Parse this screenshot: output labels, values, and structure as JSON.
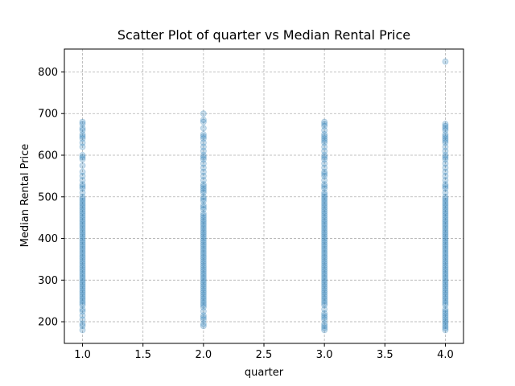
{
  "chart_data": {
    "type": "scatter",
    "title": "Scatter Plot of quarter vs Median Rental Price",
    "xlabel": "quarter",
    "ylabel": "Median Rental Price",
    "xlim": [
      0.85,
      4.15
    ],
    "ylim": [
      148,
      855
    ],
    "xticks": [
      1.0,
      1.5,
      2.0,
      2.5,
      3.0,
      3.5,
      4.0
    ],
    "xtick_labels": [
      "1.0",
      "1.5",
      "2.0",
      "2.5",
      "3.0",
      "3.5",
      "4.0"
    ],
    "yticks": [
      200,
      300,
      400,
      500,
      600,
      700,
      800
    ],
    "ytick_labels": [
      "200",
      "300",
      "400",
      "500",
      "600",
      "700",
      "800"
    ],
    "grid": true,
    "marker_color": "#1f77b4",
    "marker_alpha": 0.25,
    "series": [
      {
        "x": [
          1,
          1,
          1,
          1,
          1,
          1,
          1,
          1,
          1,
          1,
          1,
          1,
          1,
          1,
          1,
          1,
          1,
          1,
          1,
          1,
          1,
          1,
          1,
          1,
          1,
          1,
          1,
          1,
          1,
          1,
          1,
          1,
          1,
          1,
          1,
          1,
          1,
          1,
          1,
          1,
          1,
          1,
          1,
          1,
          1,
          1,
          1,
          1,
          1,
          1,
          1,
          1,
          1,
          1,
          1,
          1,
          1,
          1,
          1,
          1,
          1,
          1,
          1,
          1,
          1,
          1,
          1,
          1,
          1,
          1,
          1,
          1,
          1,
          1,
          1,
          1,
          1,
          1,
          1,
          1,
          2,
          2,
          2,
          2,
          2,
          2,
          2,
          2,
          2,
          2,
          2,
          2,
          2,
          2,
          2,
          2,
          2,
          2,
          2,
          2,
          2,
          2,
          2,
          2,
          2,
          2,
          2,
          2,
          2,
          2,
          2,
          2,
          2,
          2,
          2,
          2,
          2,
          2,
          2,
          2,
          2,
          2,
          2,
          2,
          2,
          2,
          2,
          2,
          2,
          2,
          2,
          2,
          2,
          2,
          2,
          2,
          2,
          2,
          2,
          2,
          2,
          2,
          2,
          2,
          2,
          2,
          2,
          2,
          2,
          2,
          2,
          2,
          2,
          2,
          2,
          2,
          2,
          2,
          2,
          2,
          2,
          3,
          3,
          3,
          3,
          3,
          3,
          3,
          3,
          3,
          3,
          3,
          3,
          3,
          3,
          3,
          3,
          3,
          3,
          3,
          3,
          3,
          3,
          3,
          3,
          3,
          3,
          3,
          3,
          3,
          3,
          3,
          3,
          3,
          3,
          3,
          3,
          3,
          3,
          3,
          3,
          3,
          3,
          3,
          3,
          3,
          3,
          3,
          3,
          3,
          3,
          3,
          3,
          3,
          3,
          3,
          3,
          3,
          3,
          3,
          3,
          3,
          3,
          3,
          3,
          3,
          3,
          3,
          3,
          3,
          3,
          3,
          3,
          3,
          3,
          3,
          3,
          3,
          3,
          3,
          3,
          3,
          3,
          3,
          3,
          3,
          3,
          3,
          4,
          4,
          4,
          4,
          4,
          4,
          4,
          4,
          4,
          4,
          4,
          4,
          4,
          4,
          4,
          4,
          4,
          4,
          4,
          4,
          4,
          4,
          4,
          4,
          4,
          4,
          4,
          4,
          4,
          4,
          4,
          4,
          4,
          4,
          4,
          4,
          4,
          4,
          4,
          4,
          4,
          4,
          4,
          4,
          4,
          4,
          4,
          4,
          4,
          4,
          4,
          4,
          4,
          4,
          4,
          4,
          4,
          4,
          4,
          4,
          4,
          4,
          4,
          4,
          4,
          4,
          4,
          4,
          4,
          4,
          4,
          4,
          4,
          4,
          4,
          4,
          4,
          4,
          4,
          4,
          4,
          4,
          4,
          4,
          4,
          4,
          4,
          4
        ],
        "y": [
          180,
          190,
          195,
          205,
          215,
          225,
          230,
          240,
          245,
          250,
          255,
          260,
          265,
          270,
          275,
          280,
          285,
          290,
          295,
          300,
          305,
          310,
          315,
          320,
          325,
          330,
          335,
          340,
          345,
          350,
          355,
          360,
          365,
          370,
          375,
          380,
          385,
          390,
          395,
          400,
          405,
          410,
          415,
          420,
          425,
          430,
          435,
          440,
          445,
          450,
          455,
          460,
          465,
          470,
          475,
          480,
          485,
          490,
          495,
          500,
          510,
          520,
          525,
          530,
          540,
          550,
          560,
          575,
          590,
          595,
          600,
          620,
          630,
          640,
          645,
          650,
          660,
          665,
          675,
          680,
          190,
          195,
          205,
          210,
          215,
          225,
          235,
          240,
          245,
          250,
          255,
          260,
          265,
          270,
          275,
          280,
          285,
          290,
          295,
          300,
          305,
          310,
          315,
          320,
          325,
          330,
          335,
          340,
          345,
          350,
          355,
          360,
          365,
          370,
          375,
          380,
          385,
          390,
          395,
          400,
          405,
          410,
          415,
          420,
          425,
          430,
          435,
          440,
          445,
          450,
          455,
          460,
          470,
          475,
          480,
          490,
          495,
          500,
          510,
          515,
          520,
          525,
          530,
          540,
          550,
          560,
          570,
          580,
          590,
          595,
          600,
          610,
          620,
          630,
          640,
          645,
          650,
          665,
          680,
          685,
          700,
          180,
          185,
          190,
          195,
          205,
          210,
          215,
          220,
          230,
          240,
          245,
          250,
          255,
          260,
          265,
          270,
          275,
          280,
          285,
          290,
          295,
          300,
          305,
          310,
          315,
          320,
          325,
          330,
          335,
          340,
          345,
          350,
          355,
          360,
          365,
          370,
          375,
          380,
          385,
          390,
          395,
          400,
          405,
          410,
          415,
          420,
          425,
          430,
          435,
          440,
          445,
          450,
          455,
          460,
          465,
          470,
          475,
          480,
          485,
          490,
          495,
          500,
          505,
          510,
          520,
          525,
          530,
          540,
          550,
          555,
          560,
          570,
          580,
          590,
          595,
          600,
          610,
          620,
          630,
          635,
          640,
          645,
          650,
          660,
          670,
          675,
          680,
          180,
          185,
          190,
          195,
          200,
          205,
          210,
          215,
          220,
          225,
          230,
          240,
          245,
          250,
          255,
          260,
          265,
          270,
          275,
          280,
          285,
          290,
          295,
          300,
          305,
          310,
          315,
          320,
          325,
          330,
          335,
          340,
          345,
          350,
          355,
          360,
          365,
          370,
          375,
          380,
          385,
          390,
          395,
          400,
          405,
          410,
          415,
          420,
          425,
          430,
          435,
          440,
          445,
          450,
          455,
          460,
          465,
          470,
          475,
          480,
          485,
          490,
          495,
          500,
          510,
          520,
          525,
          530,
          540,
          550,
          560,
          570,
          580,
          590,
          595,
          600,
          610,
          620,
          630,
          640,
          645,
          650,
          660,
          665,
          670,
          675,
          825,
          635
        ]
      }
    ]
  }
}
